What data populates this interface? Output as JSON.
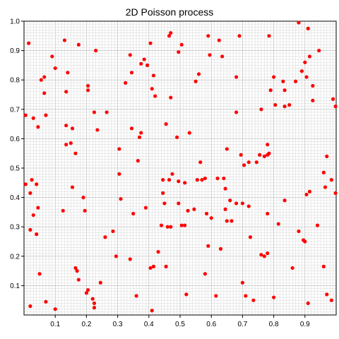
{
  "chart_data": {
    "type": "scatter",
    "title": "2D Poisson process",
    "xlabel": "",
    "ylabel": "",
    "xlim": [
      0,
      1
    ],
    "ylim": [
      0,
      1
    ],
    "grid": true,
    "grid_minor_step": 0.01,
    "x_ticks": [
      "0.1",
      "0.2",
      "0.3",
      "0.4",
      "0.5",
      "0.6",
      "0.7",
      "0.8",
      "0.9"
    ],
    "y_ticks": [
      "0.1",
      "0.2",
      "0.3",
      "0.4",
      "0.5",
      "0.6",
      "0.7",
      "0.8",
      "0.9",
      "1.0"
    ],
    "marker_color": "#ff0000",
    "points": [
      [
        0.015,
        0.925
      ],
      [
        0.005,
        0.68
      ],
      [
        0.03,
        0.67
      ],
      [
        0.045,
        0.64
      ],
      [
        0.055,
        0.8
      ],
      [
        0.065,
        0.81
      ],
      [
        0.065,
        0.755
      ],
      [
        0.07,
        0.68
      ],
      [
        0.09,
        0.88
      ],
      [
        0.1,
        0.84
      ],
      [
        0.13,
        0.935
      ],
      [
        0.14,
        0.825
      ],
      [
        0.135,
        0.76
      ],
      [
        0.135,
        0.645
      ],
      [
        0.155,
        0.635
      ],
      [
        0.15,
        0.585
      ],
      [
        0.135,
        0.58
      ],
      [
        0.165,
        0.55
      ],
      [
        0.175,
        0.92
      ],
      [
        0.205,
        0.78
      ],
      [
        0.205,
        0.765
      ],
      [
        0.225,
        0.69
      ],
      [
        0.23,
        0.9
      ],
      [
        0.235,
        0.63
      ],
      [
        0.265,
        0.69
      ],
      [
        0.305,
        0.565
      ],
      [
        0.325,
        0.79
      ],
      [
        0.34,
        0.885
      ],
      [
        0.345,
        0.825
      ],
      [
        0.345,
        0.635
      ],
      [
        0.365,
        0.525
      ],
      [
        0.37,
        0.605
      ],
      [
        0.375,
        0.62
      ],
      [
        0.375,
        0.855
      ],
      [
        0.385,
        0.87
      ],
      [
        0.395,
        0.85
      ],
      [
        0.405,
        0.925
      ],
      [
        0.41,
        0.77
      ],
      [
        0.415,
        0.815
      ],
      [
        0.42,
        0.745
      ],
      [
        0.445,
        0.46
      ],
      [
        0.445,
        0.415
      ],
      [
        0.455,
        0.65
      ],
      [
        0.465,
        0.95
      ],
      [
        0.47,
        0.96
      ],
      [
        0.47,
        0.74
      ],
      [
        0.475,
        0.48
      ],
      [
        0.465,
        0.46
      ],
      [
        0.49,
        0.605
      ],
      [
        0.495,
        0.895
      ],
      [
        0.505,
        0.92
      ],
      [
        0.53,
        0.62
      ],
      [
        0.515,
        0.45
      ],
      [
        0.55,
        0.795
      ],
      [
        0.56,
        0.82
      ],
      [
        0.565,
        0.52
      ],
      [
        0.555,
        0.46
      ],
      [
        0.57,
        0.46
      ],
      [
        0.59,
        0.95
      ],
      [
        0.595,
        0.885
      ],
      [
        0.625,
        0.935
      ],
      [
        0.635,
        0.88
      ],
      [
        0.58,
        0.465
      ],
      [
        0.62,
        0.465
      ],
      [
        0.64,
        0.465
      ],
      [
        0.645,
        0.43
      ],
      [
        0.65,
        0.565
      ],
      [
        0.66,
        0.39
      ],
      [
        0.68,
        0.81
      ],
      [
        0.68,
        0.69
      ],
      [
        0.69,
        0.95
      ],
      [
        0.695,
        0.545
      ],
      [
        0.705,
        0.51
      ],
      [
        0.72,
        0.52
      ],
      [
        0.68,
        0.38
      ],
      [
        0.7,
        0.38
      ],
      [
        0.72,
        0.37
      ],
      [
        0.745,
        0.52
      ],
      [
        0.755,
        0.545
      ],
      [
        0.76,
        0.7
      ],
      [
        0.77,
        0.54
      ],
      [
        0.78,
        0.58
      ],
      [
        0.78,
        0.545
      ],
      [
        0.785,
        0.55
      ],
      [
        0.785,
        0.95
      ],
      [
        0.79,
        0.765
      ],
      [
        0.8,
        0.81
      ],
      [
        0.805,
        0.715
      ],
      [
        0.83,
        0.795
      ],
      [
        0.835,
        0.765
      ],
      [
        0.835,
        0.71
      ],
      [
        0.85,
        0.715
      ],
      [
        0.87,
        0.795
      ],
      [
        0.88,
        0.995
      ],
      [
        0.89,
        0.83
      ],
      [
        0.9,
        0.86
      ],
      [
        0.905,
        0.81
      ],
      [
        0.91,
        0.975
      ],
      [
        0.915,
        0.88
      ],
      [
        0.925,
        0.78
      ],
      [
        0.925,
        0.73
      ],
      [
        0.945,
        0.9
      ],
      [
        0.96,
        0.485
      ],
      [
        0.965,
        0.435
      ],
      [
        0.97,
        0.54
      ],
      [
        0.985,
        0.46
      ],
      [
        0.99,
        0.735
      ],
      [
        0.998,
        0.71
      ],
      [
        0.998,
        0.415
      ],
      [
        0.96,
        0.165
      ],
      [
        0.97,
        0.07
      ],
      [
        0.985,
        0.05
      ],
      [
        0.005,
        0.445
      ],
      [
        0.025,
        0.46
      ],
      [
        0.04,
        0.445
      ],
      [
        0.02,
        0.415
      ],
      [
        0.03,
        0.34
      ],
      [
        0.045,
        0.365
      ],
      [
        0.02,
        0.29
      ],
      [
        0.04,
        0.275
      ],
      [
        0.05,
        0.14
      ],
      [
        0.07,
        0.045
      ],
      [
        0.02,
        0.03
      ],
      [
        0.1,
        0.02
      ],
      [
        0.125,
        0.355
      ],
      [
        0.155,
        0.435
      ],
      [
        0.19,
        0.4
      ],
      [
        0.195,
        0.355
      ],
      [
        0.165,
        0.16
      ],
      [
        0.17,
        0.15
      ],
      [
        0.175,
        0.12
      ],
      [
        0.2,
        0.075
      ],
      [
        0.205,
        0.085
      ],
      [
        0.22,
        0.055
      ],
      [
        0.225,
        0.04
      ],
      [
        0.225,
        0.025
      ],
      [
        0.245,
        0.11
      ],
      [
        0.26,
        0.265
      ],
      [
        0.285,
        0.285
      ],
      [
        0.295,
        0.2
      ],
      [
        0.305,
        0.48
      ],
      [
        0.31,
        0.395
      ],
      [
        0.34,
        0.19
      ],
      [
        0.35,
        0.345
      ],
      [
        0.36,
        0.065
      ],
      [
        0.39,
        0.365
      ],
      [
        0.405,
        0.16
      ],
      [
        0.415,
        0.165
      ],
      [
        0.41,
        0.015
      ],
      [
        0.43,
        0.215
      ],
      [
        0.44,
        0.305
      ],
      [
        0.45,
        0.38
      ],
      [
        0.455,
        0.165
      ],
      [
        0.46,
        0.3
      ],
      [
        0.47,
        0.3
      ],
      [
        0.495,
        0.455
      ],
      [
        0.495,
        0.38
      ],
      [
        0.505,
        0.305
      ],
      [
        0.515,
        0.305
      ],
      [
        0.52,
        0.07
      ],
      [
        0.525,
        0.355
      ],
      [
        0.545,
        0.36
      ],
      [
        0.58,
        0.14
      ],
      [
        0.585,
        0.345
      ],
      [
        0.59,
        0.235
      ],
      [
        0.6,
        0.33
      ],
      [
        0.615,
        0.065
      ],
      [
        0.63,
        0.225
      ],
      [
        0.645,
        0.36
      ],
      [
        0.65,
        0.32
      ],
      [
        0.665,
        0.32
      ],
      [
        0.7,
        0.11
      ],
      [
        0.71,
        0.065
      ],
      [
        0.725,
        0.265
      ],
      [
        0.735,
        0.05
      ],
      [
        0.76,
        0.205
      ],
      [
        0.77,
        0.2
      ],
      [
        0.78,
        0.21
      ],
      [
        0.78,
        0.345
      ],
      [
        0.8,
        0.06
      ],
      [
        0.815,
        0.31
      ],
      [
        0.835,
        0.39
      ],
      [
        0.86,
        0.16
      ],
      [
        0.88,
        0.285
      ],
      [
        0.895,
        0.255
      ],
      [
        0.9,
        0.25
      ],
      [
        0.905,
        0.41
      ],
      [
        0.915,
        0.42
      ],
      [
        0.91,
        0.04
      ],
      [
        0.94,
        0.305
      ]
    ]
  }
}
